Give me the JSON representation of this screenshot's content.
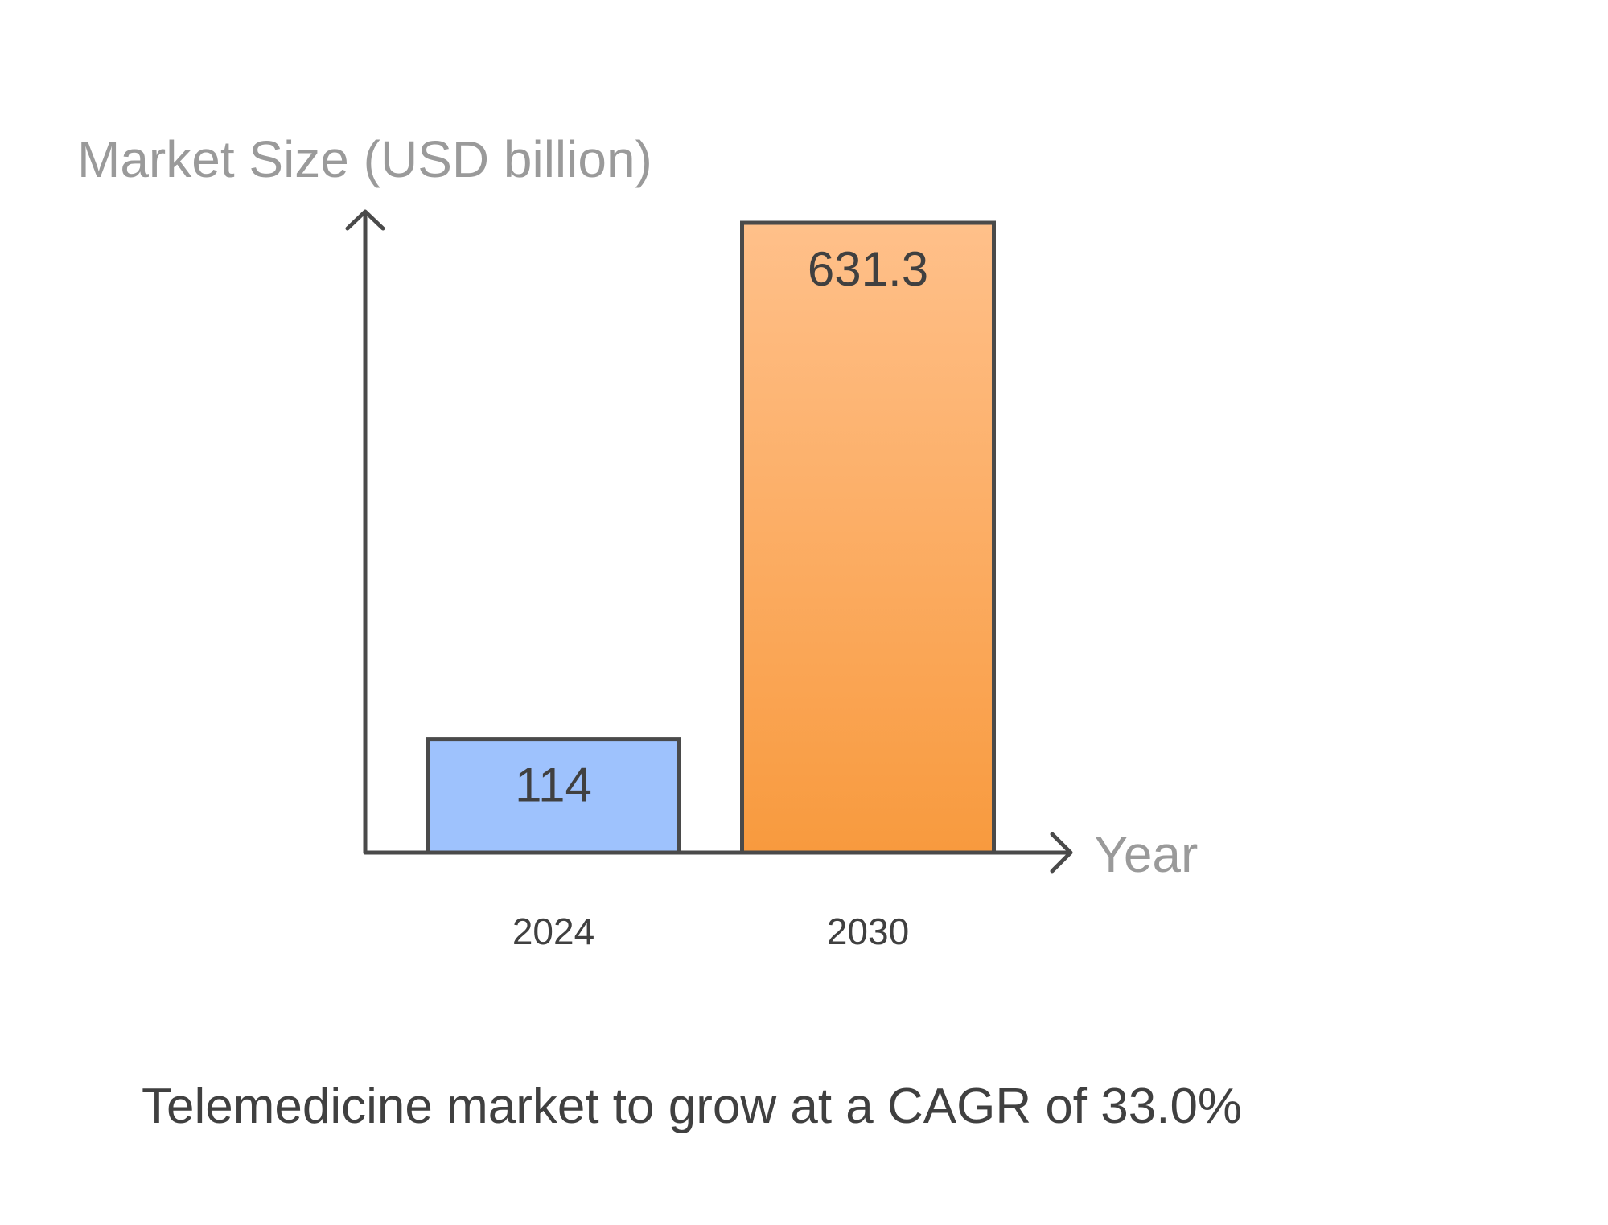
{
  "chart_data": {
    "type": "bar",
    "categories": [
      "2024",
      "2030"
    ],
    "values": [
      114,
      631.3
    ],
    "value_labels": [
      "114",
      "631.3"
    ],
    "ylabel": "Market Size (USD billion)",
    "xlabel": "Year",
    "caption": "Telemedicine market to grow at a CAGR of 33.0%",
    "ylim": [
      0,
      631.3
    ],
    "grid": false,
    "colors": [
      "#9ec2fd",
      "#f89a3e"
    ],
    "gradient_top_2030": "#ffc08a"
  }
}
